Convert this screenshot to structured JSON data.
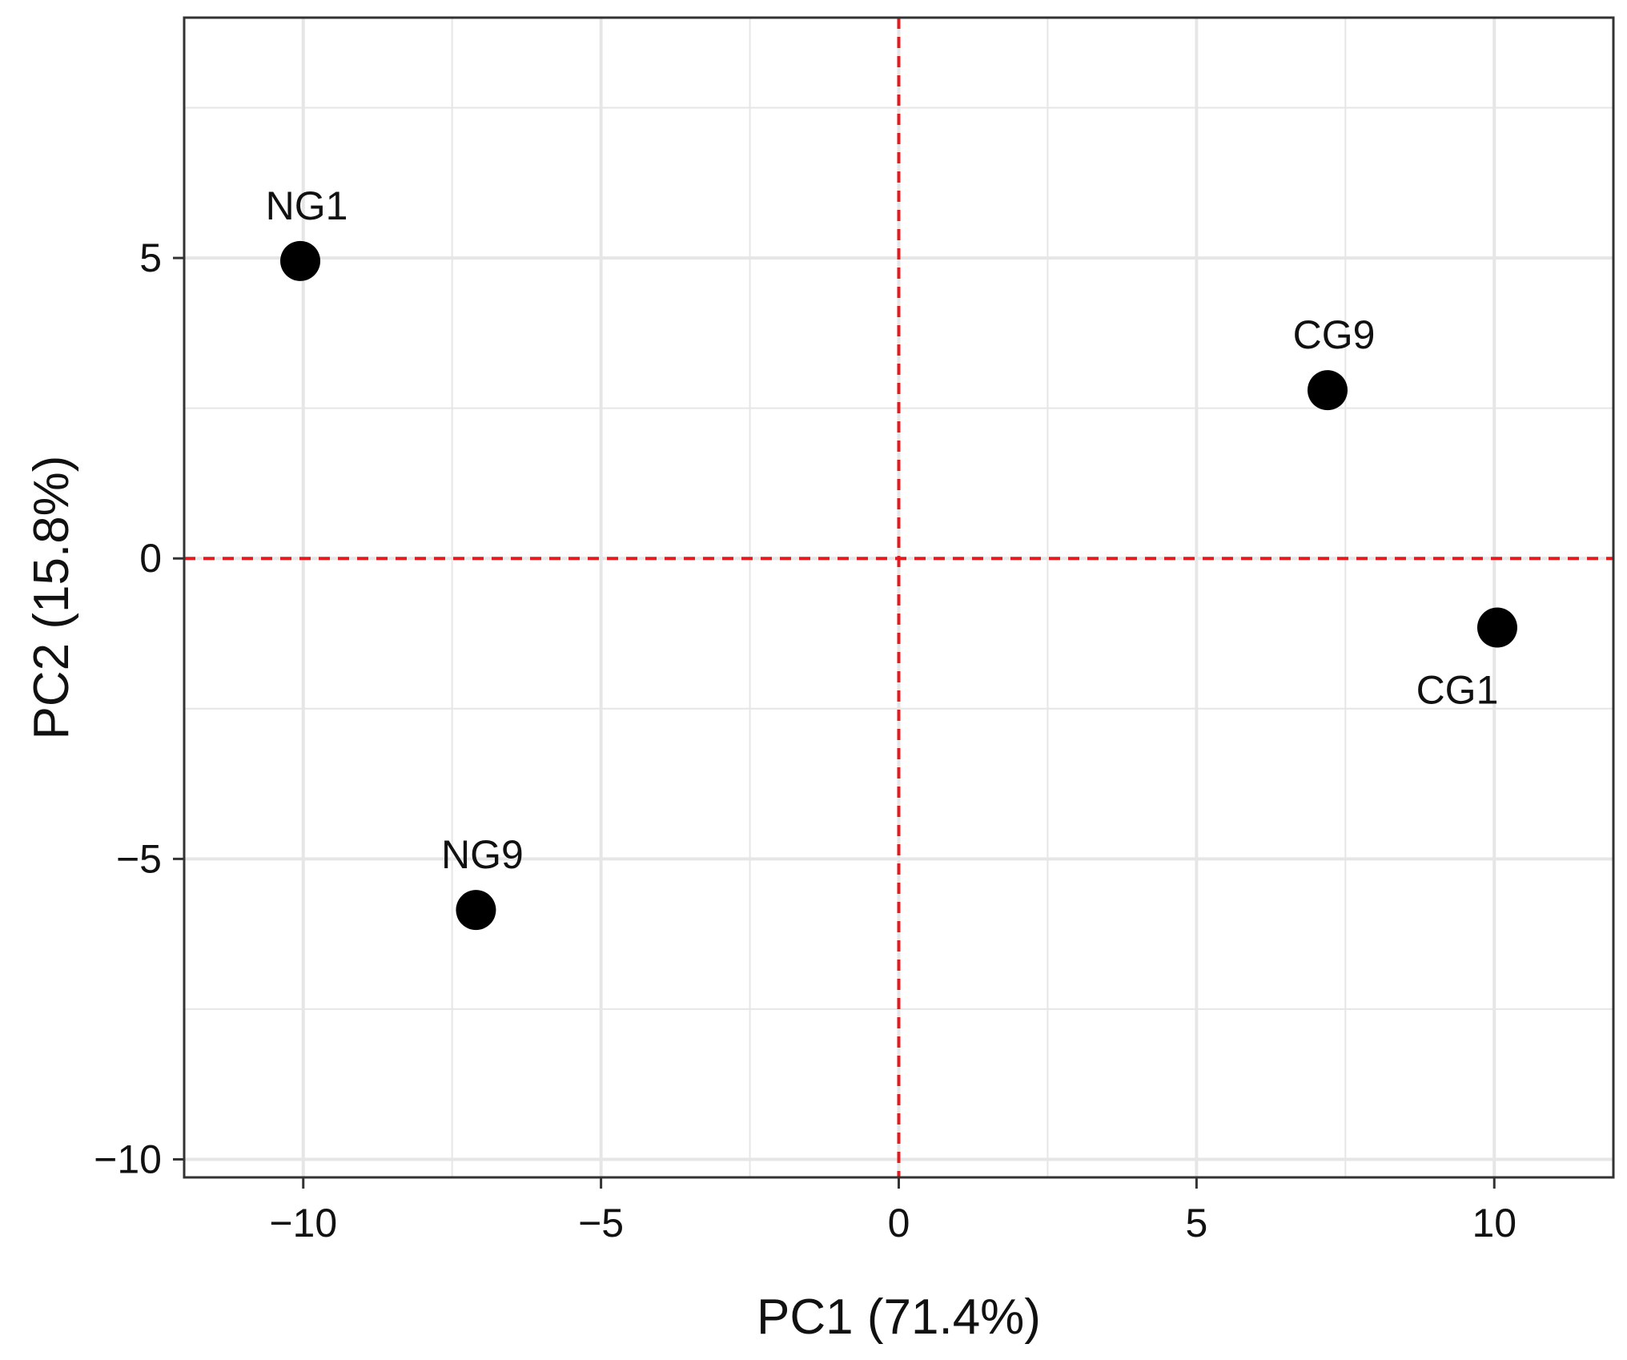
{
  "chart_data": {
    "type": "scatter",
    "title": "",
    "xlabel": "PC1 (71.4%)",
    "ylabel": "PC2 (15.8%)",
    "xlim": [
      -12,
      12
    ],
    "ylim": [
      -10.3,
      9
    ],
    "xticks": [
      -10,
      -5,
      0,
      5,
      10
    ],
    "xtick_labels": [
      "−10",
      "−5",
      "0",
      "5",
      "10"
    ],
    "yticks": [
      -10,
      -5,
      0,
      5
    ],
    "ytick_labels": [
      "−10",
      "−5",
      "0",
      "5"
    ],
    "minor_x": [
      -7.5,
      -2.5,
      2.5,
      7.5
    ],
    "minor_y": [
      -7.5,
      -2.5,
      2.5,
      7.5
    ],
    "grid": true,
    "reference_lines": {
      "x": 0,
      "y": 0,
      "color": "#e41a1c",
      "style": "dashed"
    },
    "points": [
      {
        "label": "NG1",
        "x": -10.05,
        "y": 4.95,
        "label_position": "above"
      },
      {
        "label": "NG9",
        "x": -7.1,
        "y": -5.85,
        "label_position": "above"
      },
      {
        "label": "CG9",
        "x": 7.2,
        "y": 2.8,
        "label_position": "above"
      },
      {
        "label": "CG1",
        "x": 10.05,
        "y": -1.15,
        "label_position": "below-left"
      }
    ],
    "colors": {
      "point": "#000000",
      "grid": "#e6e6e6",
      "frame": "#333333",
      "reference": "#e41a1c"
    }
  }
}
